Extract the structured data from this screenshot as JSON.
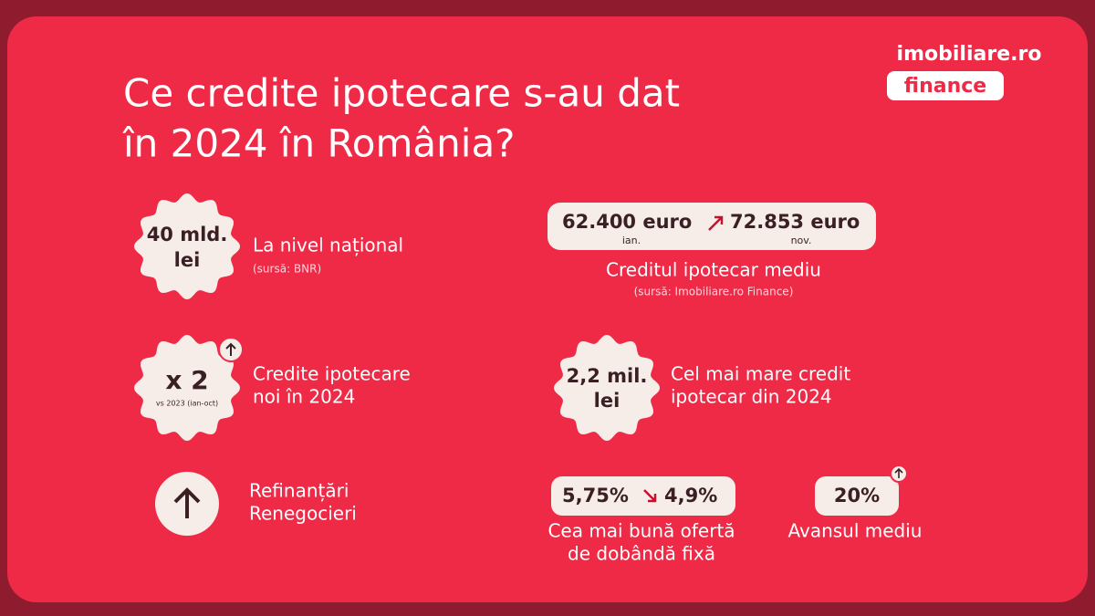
{
  "logo": {
    "brand": "imobiliare.ro",
    "product": "finance"
  },
  "title": [
    "Ce credite ipotecare s-au dat",
    "în 2024 în România?"
  ],
  "items": [
    {
      "badge": [
        "40 mld.",
        "lei"
      ],
      "label": [
        "La nivel național"
      ],
      "source": "(sursă: BNR)"
    },
    {
      "from": "62.400 euro",
      "from_note": "ian.",
      "to": "72.853 euro",
      "to_note": "nov.",
      "label": [
        "Creditul ipotecar mediu"
      ],
      "source": "(sursă: Imobiliare.ro Finance)"
    },
    {
      "badge": [
        "x 2"
      ],
      "badge_note": "vs 2023 (ian-oct)",
      "label": [
        "Credite ipotecare",
        "noi în 2024"
      ]
    },
    {
      "badge": [
        "2,2 mil.",
        "lei"
      ],
      "label": [
        "Cel mai mare credit",
        "ipotecar din 2024"
      ]
    },
    {
      "label": [
        "Refinanțări",
        "Renegocieri"
      ]
    },
    {
      "from": "5,75%",
      "to": "4,9%",
      "label": [
        "Cea mai bună ofertă",
        "de dobândă fixă"
      ]
    },
    {
      "value": "20%",
      "label": [
        "Avansul mediu"
      ]
    }
  ]
}
